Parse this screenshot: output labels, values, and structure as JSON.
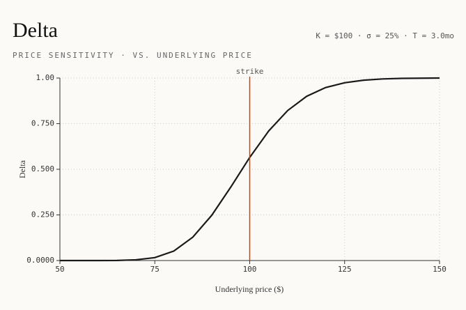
{
  "chart_data": {
    "type": "line",
    "title": "Delta",
    "subtitle": "PRICE SENSITIVITY · VS. UNDERLYING PRICE",
    "parameters": "K = $100 · σ = 25% · T = 3.0mo",
    "x_label": "Underlying price ($)",
    "y_label": "Delta",
    "x": [
      50,
      55,
      60,
      65,
      70,
      75,
      80,
      85,
      90,
      95,
      100,
      105,
      110,
      115,
      120,
      125,
      130,
      135,
      140,
      145,
      150
    ],
    "series": [
      {
        "name": "Delta",
        "color": "#1a1a1a",
        "values": [
          0.0,
          0.0,
          0.0,
          0.0005,
          0.004,
          0.016,
          0.052,
          0.128,
          0.248,
          0.402,
          0.565,
          0.71,
          0.822,
          0.9,
          0.948,
          0.974,
          0.988,
          0.995,
          0.998,
          0.999,
          1.0
        ]
      }
    ],
    "strike": {
      "x": 100,
      "label": "strike",
      "color": "#a0522d"
    },
    "xlim": [
      50,
      150
    ],
    "xticks": [
      50,
      75,
      100,
      125,
      150
    ],
    "ylim": [
      0,
      1
    ],
    "yticks": [
      {
        "value": 0,
        "label": "0.0000"
      },
      {
        "value": 0.25,
        "label": "0.250"
      },
      {
        "value": 0.5,
        "label": "0.500"
      },
      {
        "value": 0.75,
        "label": "0.750"
      },
      {
        "value": 1,
        "label": "1.00"
      }
    ],
    "grid": true
  }
}
